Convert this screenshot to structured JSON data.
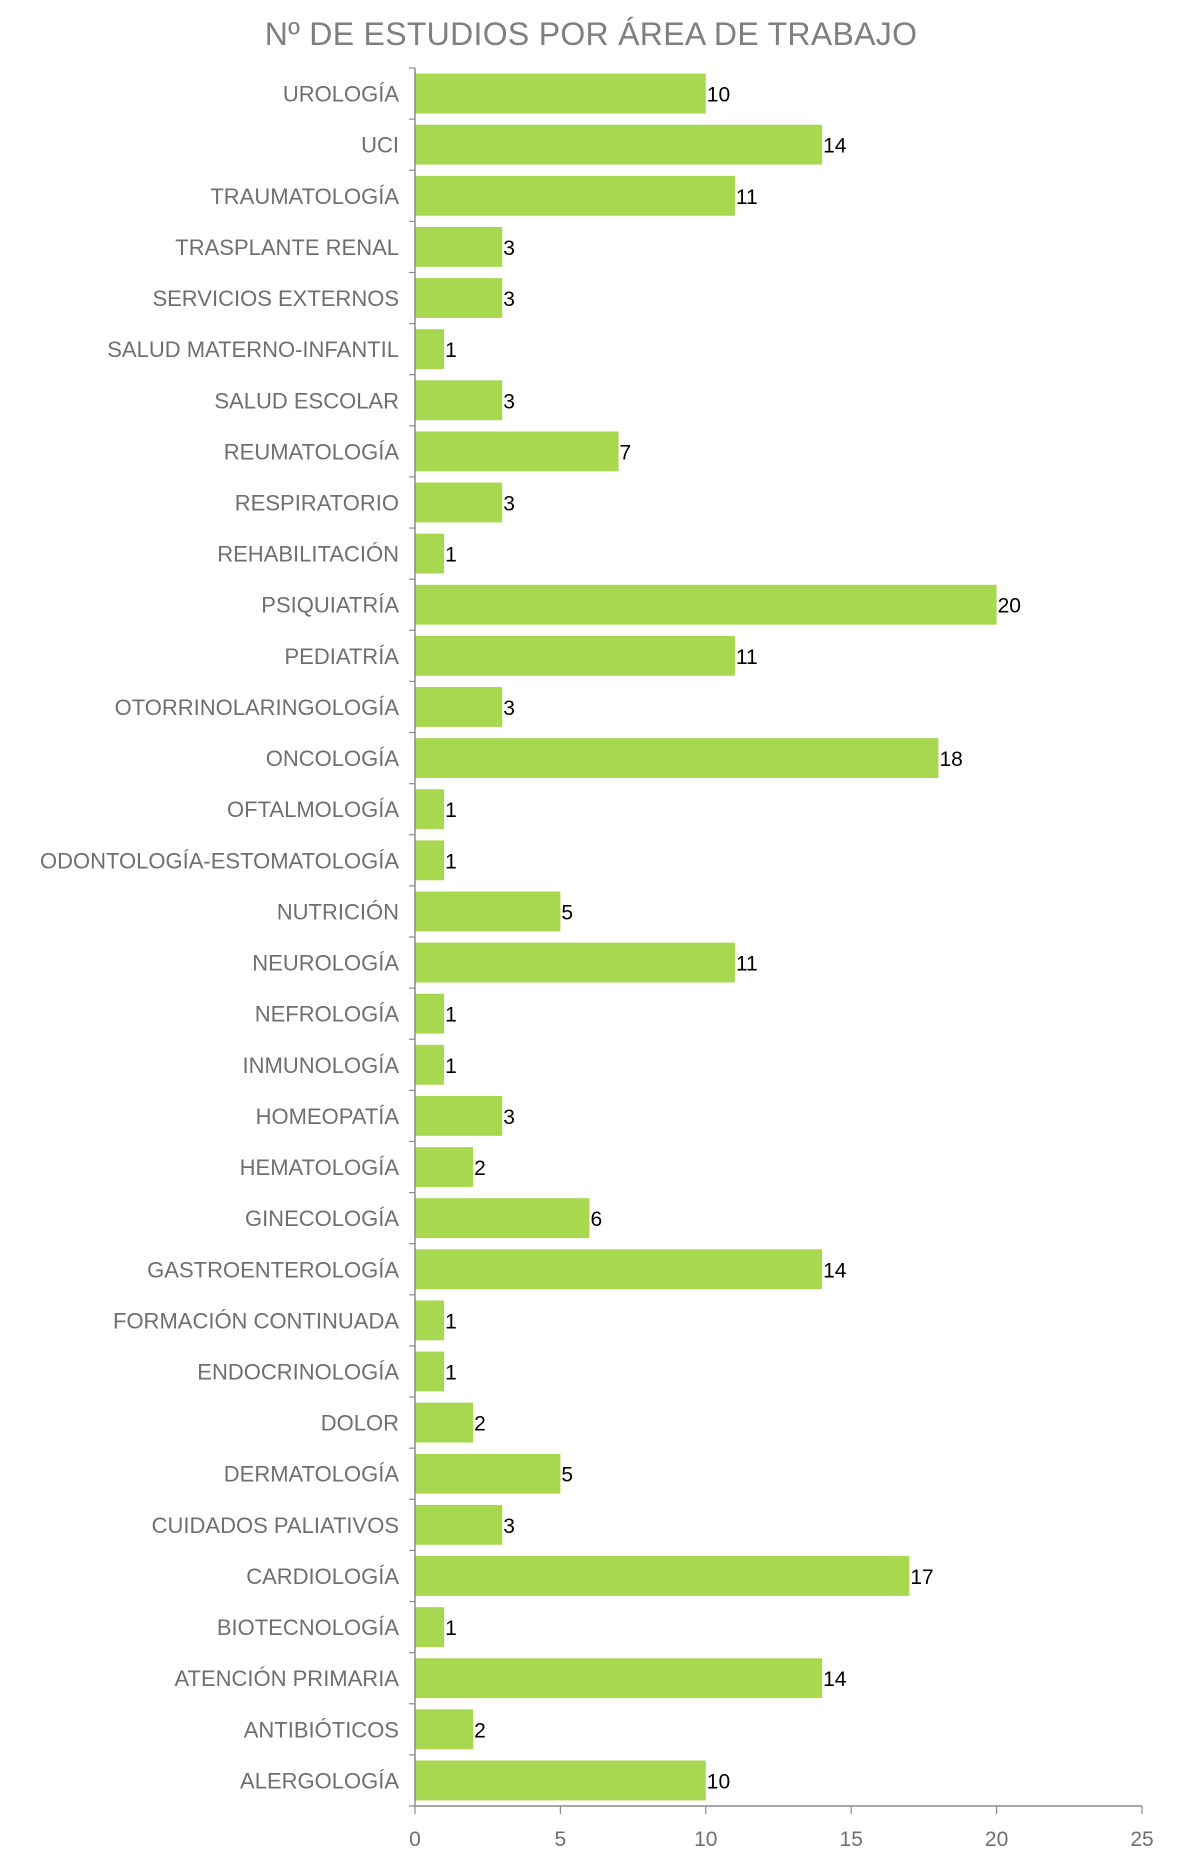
{
  "chart_data": {
    "type": "bar",
    "orientation": "horizontal",
    "title": "Nº DE ESTUDIOS POR ÁREA DE TRABAJO",
    "xlabel": "",
    "ylabel": "",
    "xlim": [
      0,
      25
    ],
    "x_ticks": [
      0,
      5,
      10,
      15,
      20,
      25
    ],
    "grid": false,
    "legend": "none",
    "bar_color": "#a7d84f",
    "show_data_labels": true,
    "categories": [
      "UROLOGÍA",
      "UCI",
      "TRAUMATOLOGÍA",
      "TRASPLANTE RENAL",
      "SERVICIOS EXTERNOS",
      "SALUD MATERNO-INFANTIL",
      "SALUD ESCOLAR",
      "REUMATOLOGÍA",
      "RESPIRATORIO",
      "REHABILITACIÓN",
      "PSIQUIATRÍA",
      "PEDIATRÍA",
      "OTORRINOLARINGOLOGÍA",
      "ONCOLOGÍA",
      "OFTALMOLOGÍA",
      "ODONTOLOGÍA-ESTOMATOLOGÍA",
      "NUTRICIÓN",
      "NEUROLOGÍA",
      "NEFROLOGÍA",
      "INMUNOLOGÍA",
      "HOMEOPATÍA",
      "HEMATOLOGÍA",
      "GINECOLOGÍA",
      "GASTROENTEROLOGÍA",
      "FORMACIÓN CONTINUADA",
      "ENDOCRINOLOGÍA",
      "DOLOR",
      "DERMATOLOGÍA",
      "CUIDADOS PALIATIVOS",
      "CARDIOLOGÍA",
      "BIOTECNOLOGÍA",
      "ATENCIÓN PRIMARIA",
      "ANTIBIÓTICOS",
      "ALERGOLOGÍA"
    ],
    "values": [
      10,
      14,
      11,
      3,
      3,
      1,
      3,
      7,
      3,
      1,
      20,
      11,
      3,
      18,
      1,
      1,
      5,
      11,
      1,
      1,
      3,
      2,
      6,
      14,
      1,
      1,
      2,
      5,
      3,
      17,
      1,
      14,
      2,
      10
    ]
  }
}
